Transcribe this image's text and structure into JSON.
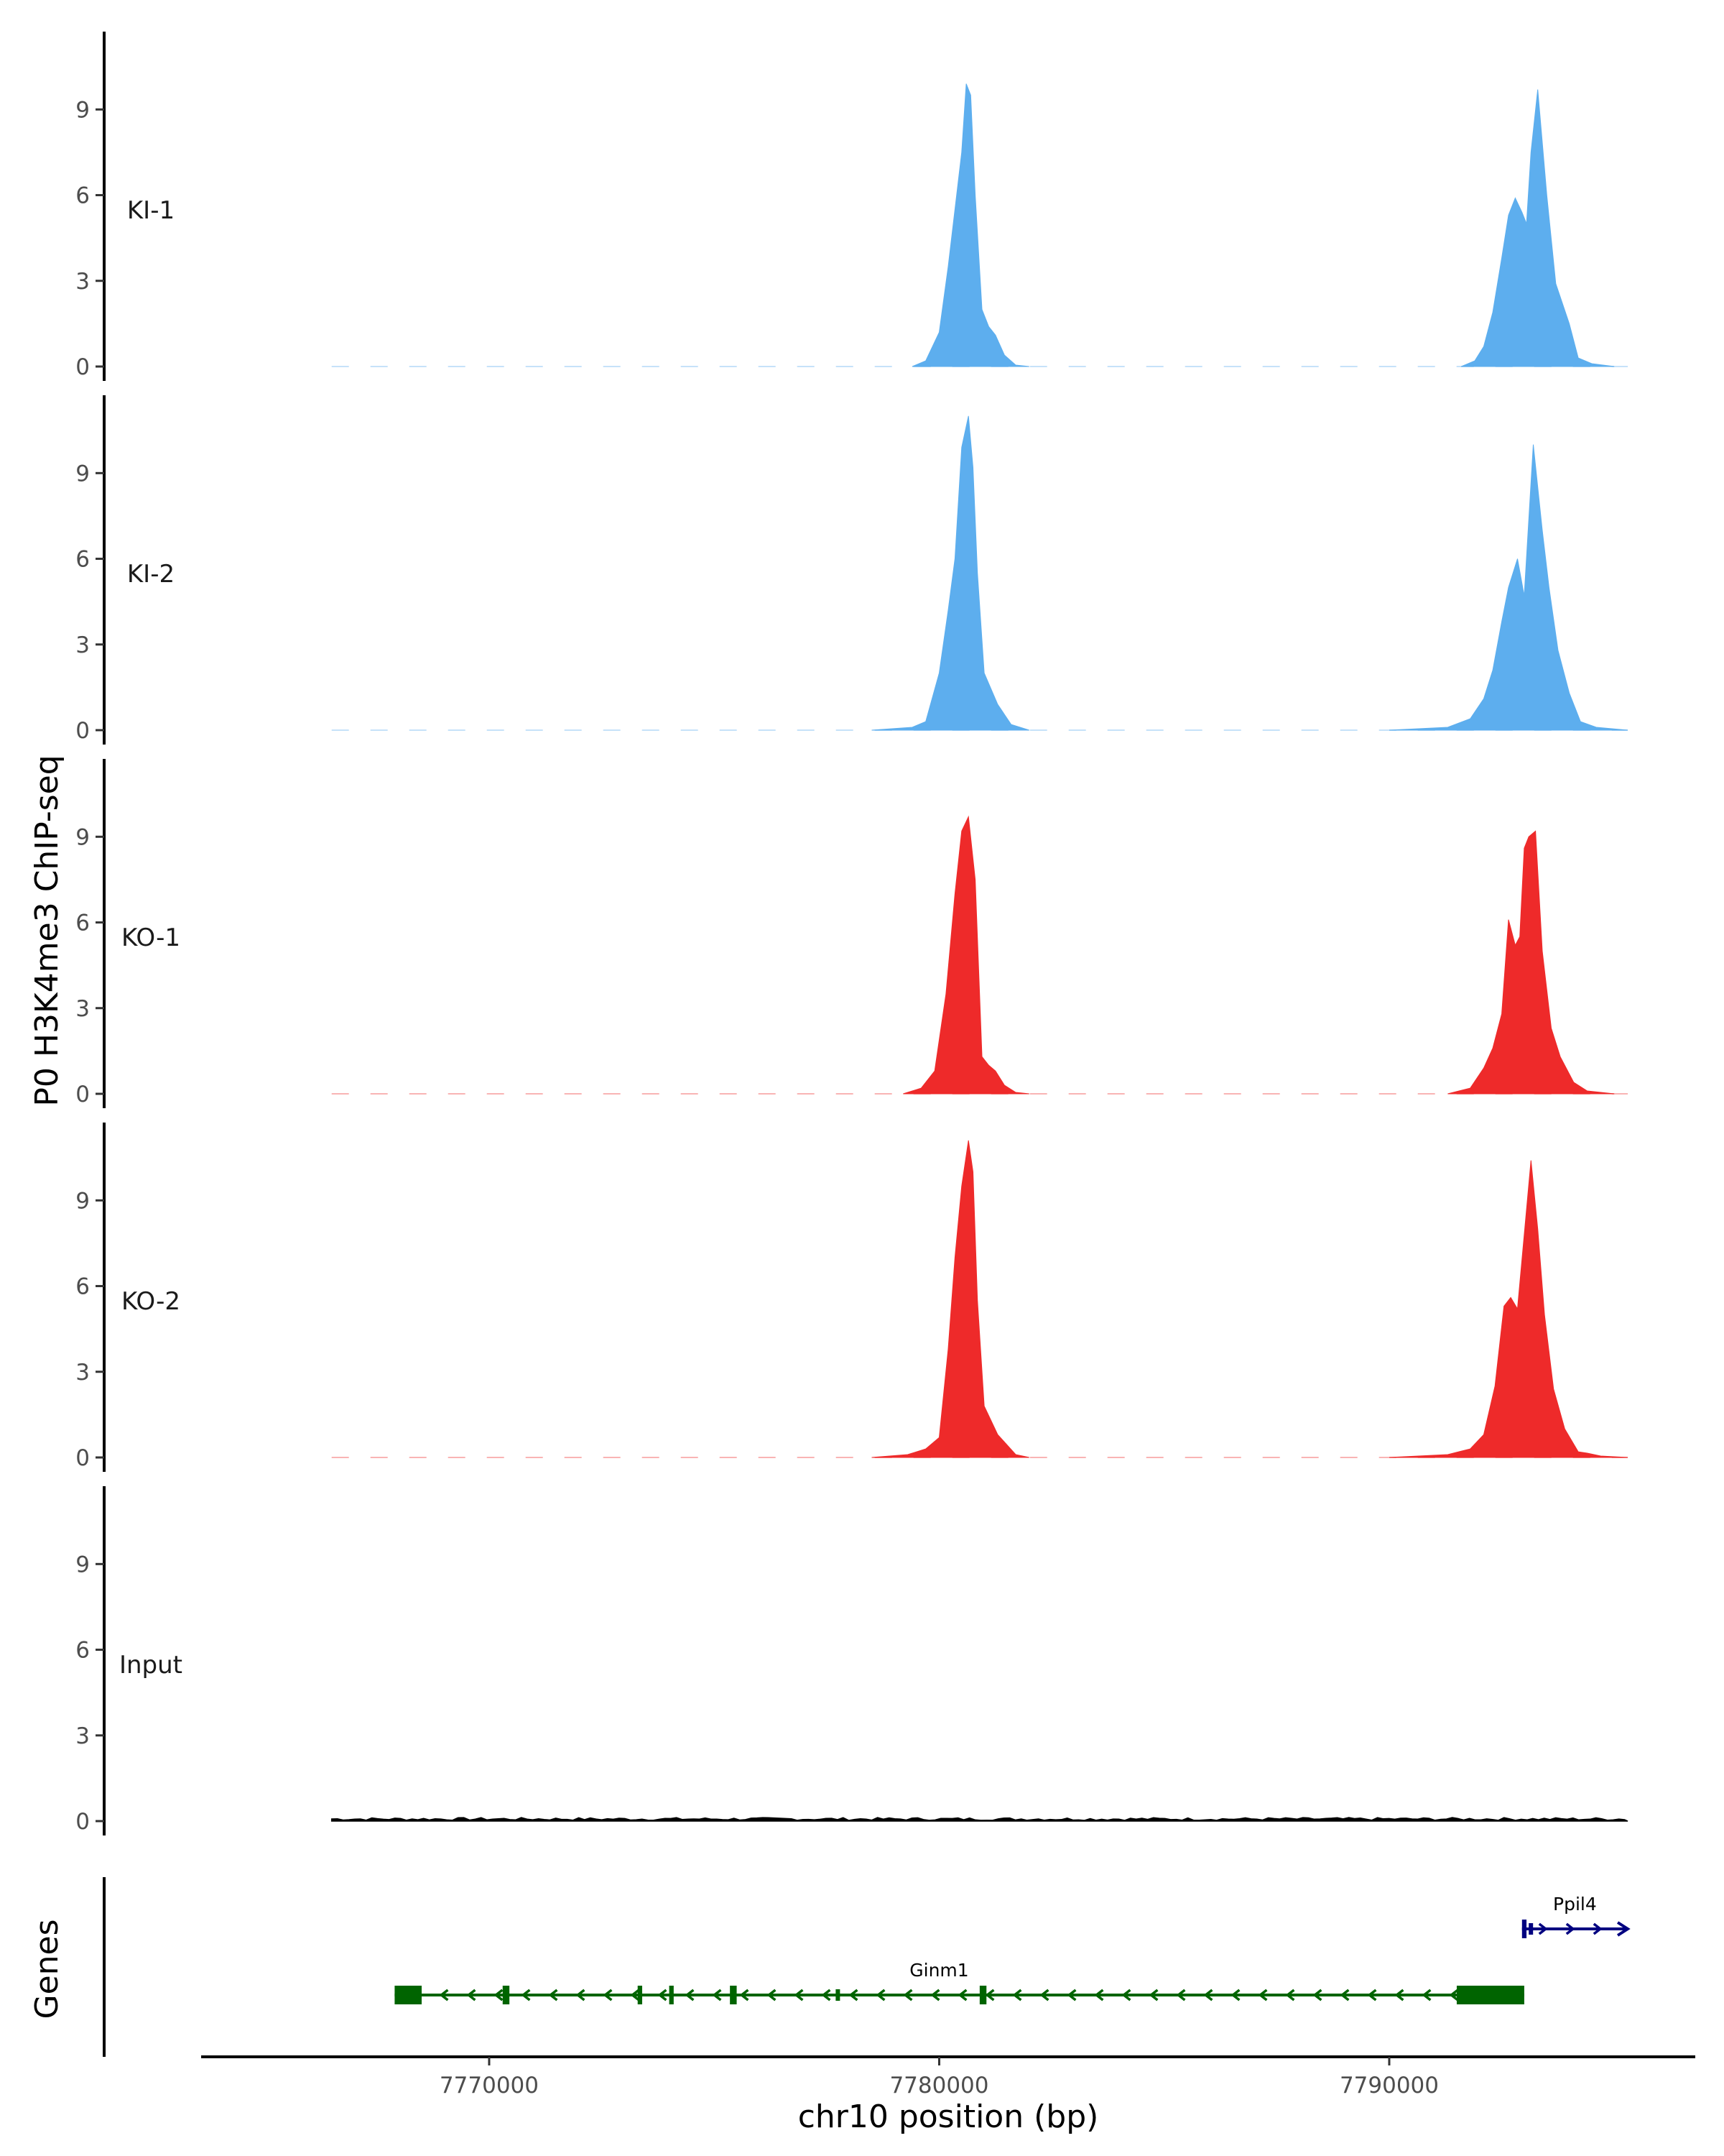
{
  "chart_data": {
    "type": "area",
    "ylabel": "P0 H3K4me3 ChIP-seq",
    "xlabel": "chr10 position (bp)",
    "genes_label": "Genes",
    "chromosome": "chr10",
    "xlim": [
      7763600,
      7796800
    ],
    "signal_range": [
      7766500,
      7795300
    ],
    "ylim": [
      0,
      11.7
    ],
    "y_ticks": [
      0,
      3,
      6,
      9
    ],
    "x_ticks": [
      {
        "value": 7770000,
        "label": "7770000"
      },
      {
        "value": 7780000,
        "label": "7780000"
      },
      {
        "value": 7790000,
        "label": "7790000"
      }
    ],
    "grid": false,
    "colors": {
      "KI": "#5daeee",
      "KO": "#ee2a2a",
      "Input": "#000000"
    },
    "tracks": [
      {
        "name": "KI-1",
        "color": "#5daeee",
        "peaks": [
          {
            "x": [
              7779400,
              7779700,
              7780000,
              7780200,
              7780350,
              7780500,
              7780600,
              7780700,
              7780800,
              7780950,
              7781100,
              7781250,
              7781450,
              7781700,
              7782000
            ],
            "y": [
              0,
              0.2,
              1.2,
              3.5,
              5.5,
              7.5,
              9.9,
              9.5,
              6.0,
              2.0,
              1.4,
              1.1,
              0.4,
              0.05,
              0
            ]
          },
          {
            "x": [
              7791600,
              7791900,
              7792100,
              7792300,
              7792500,
              7792650,
              7792800,
              7792950,
              7793050,
              7793150,
              7793300,
              7793500,
              7793700,
              7794000,
              7794200,
              7794500,
              7795000
            ],
            "y": [
              0,
              0.2,
              0.7,
              1.9,
              3.8,
              5.3,
              5.9,
              5.4,
              5.0,
              7.5,
              9.7,
              6.0,
              2.9,
              1.5,
              0.3,
              0.1,
              0
            ]
          }
        ]
      },
      {
        "name": "KI-2",
        "color": "#5daeee",
        "peaks": [
          {
            "x": [
              7778500,
              7779400,
              7779700,
              7780000,
              7780200,
              7780350,
              7780500,
              7780650,
              7780750,
              7780850,
              7781000,
              7781300,
              7781600,
              7782000
            ],
            "y": [
              0,
              0.1,
              0.3,
              2.0,
              4.2,
              6.0,
              9.9,
              11.0,
              9.2,
              5.5,
              2.0,
              0.9,
              0.2,
              0
            ]
          },
          {
            "x": [
              7790000,
              7791300,
              7791800,
              7792100,
              7792300,
              7792500,
              7792650,
              7792850,
              7793000,
              7793200,
              7793400,
              7793550,
              7793750,
              7794000,
              7794250,
              7794600,
              7795300
            ],
            "y": [
              0,
              0.1,
              0.4,
              1.1,
              2.1,
              3.8,
              5.0,
              6.0,
              4.7,
              10.0,
              7.0,
              5.0,
              2.8,
              1.3,
              0.3,
              0.1,
              0
            ]
          }
        ]
      },
      {
        "name": "KO-1",
        "color": "#ee2a2a",
        "peaks": [
          {
            "x": [
              7779200,
              7779600,
              7779900,
              7780150,
              7780350,
              7780500,
              7780650,
              7780800,
              7780950,
              7781100,
              7781250,
              7781450,
              7781700,
              7782000
            ],
            "y": [
              0,
              0.2,
              0.8,
              3.5,
              7.0,
              9.2,
              9.7,
              7.5,
              1.3,
              1.0,
              0.8,
              0.3,
              0.05,
              0
            ]
          },
          {
            "x": [
              7791300,
              7791800,
              7792100,
              7792300,
              7792500,
              7792650,
              7792800,
              7792900,
              7793000,
              7793100,
              7793250,
              7793400,
              7793600,
              7793800,
              7794100,
              7794400,
              7795000
            ],
            "y": [
              0,
              0.2,
              0.9,
              1.6,
              2.8,
              6.1,
              5.2,
              5.5,
              8.6,
              9.0,
              9.2,
              5.0,
              2.3,
              1.3,
              0.4,
              0.1,
              0
            ]
          }
        ]
      },
      {
        "name": "KO-2",
        "color": "#ee2a2a",
        "peaks": [
          {
            "x": [
              7778500,
              7779300,
              7779700,
              7780000,
              7780200,
              7780350,
              7780500,
              7780650,
              7780750,
              7780850,
              7781000,
              7781300,
              7781700,
              7782000
            ],
            "y": [
              0,
              0.1,
              0.3,
              0.7,
              3.8,
              7.0,
              9.5,
              11.1,
              10.0,
              5.5,
              1.8,
              0.8,
              0.1,
              0
            ]
          },
          {
            "x": [
              7790000,
              7791300,
              7791800,
              7792100,
              7792350,
              7792550,
              7792700,
              7792850,
              7793000,
              7793150,
              7793300,
              7793450,
              7793650,
              7793900,
              7794200,
              7794400,
              7794700,
              7795300
            ],
            "y": [
              0,
              0.1,
              0.3,
              0.8,
              2.5,
              5.3,
              5.6,
              5.2,
              7.8,
              10.4,
              8.0,
              5.0,
              2.4,
              1.0,
              0.2,
              0.15,
              0.05,
              0
            ]
          }
        ]
      },
      {
        "name": "Input",
        "color": "#000000",
        "peaks": []
      }
    ],
    "genes": [
      {
        "name": "Ginm1",
        "strand": "-",
        "color": "#006400",
        "start": 7767900,
        "end": 7793000,
        "exons": [
          {
            "start": 7767900,
            "end": 7768500,
            "coding": true
          },
          {
            "start": 7770300,
            "end": 7770450,
            "coding": true
          },
          {
            "start": 7773300,
            "end": 7773400,
            "coding": true
          },
          {
            "start": 7774000,
            "end": 7774100,
            "coding": true
          },
          {
            "start": 7775350,
            "end": 7775500,
            "coding": true
          },
          {
            "start": 7777700,
            "end": 7777760,
            "coding": false
          },
          {
            "start": 7780900,
            "end": 7781050,
            "coding": true
          },
          {
            "start": 7791500,
            "end": 7793000,
            "coding": true
          }
        ]
      },
      {
        "name": "Ppil4",
        "strand": "+",
        "color": "#000080",
        "start": 7792950,
        "end": 7795300,
        "exons": [
          {
            "start": 7792950,
            "end": 7793050,
            "coding": true
          },
          {
            "start": 7793100,
            "end": 7793150,
            "coding": false
          }
        ]
      }
    ]
  }
}
